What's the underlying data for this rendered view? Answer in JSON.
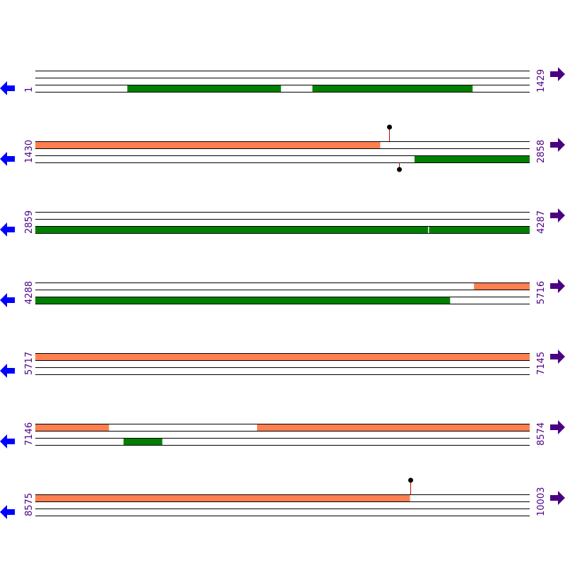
{
  "colors": {
    "forward_feature": "#ff7f50",
    "reverse_feature": "#008000",
    "strand_line": "#000000",
    "left_arrow": "#0000ff",
    "right_arrow": "#4b0082",
    "label": "#4b0082",
    "marker_stem": "#cc0000",
    "marker_head": "#000000"
  },
  "bp_per_row": 1429,
  "rows": [
    {
      "start": "1",
      "end": "1429",
      "top": [],
      "bottom": [
        [
          267,
          710
        ],
        [
          802,
          1264
        ]
      ],
      "markers": []
    },
    {
      "start": "1430",
      "end": "2858",
      "top": [
        [
          1430,
          2426
        ]
      ],
      "bottom": [
        [
          2526,
          2858
        ]
      ],
      "markers": [
        {
          "pos": 2453,
          "strand": "top"
        },
        {
          "pos": 2481,
          "strand": "bottom"
        }
      ]
    },
    {
      "start": "2859",
      "end": "4287",
      "top": [],
      "bottom": [
        [
          2859,
          3993
        ],
        [
          3997,
          4287
        ]
      ],
      "markers": []
    },
    {
      "start": "4288",
      "end": "5716",
      "top": [
        [
          5556,
          5716
        ]
      ],
      "bottom": [
        [
          4288,
          5486
        ]
      ],
      "markers": []
    },
    {
      "start": "5717",
      "end": "7145",
      "top": [
        [
          5717,
          7145
        ]
      ],
      "bottom": [],
      "markers": []
    },
    {
      "start": "7146",
      "end": "8574",
      "top": [
        [
          7146,
          7358
        ],
        [
          7787,
          8574
        ]
      ],
      "bottom": [
        [
          7401,
          7512
        ]
      ],
      "markers": []
    },
    {
      "start": "8575",
      "end": "10003",
      "top": [
        [
          8575,
          9657
        ]
      ],
      "bottom": [],
      "markers": [
        {
          "pos": 9659,
          "strand": "top"
        }
      ]
    }
  ]
}
